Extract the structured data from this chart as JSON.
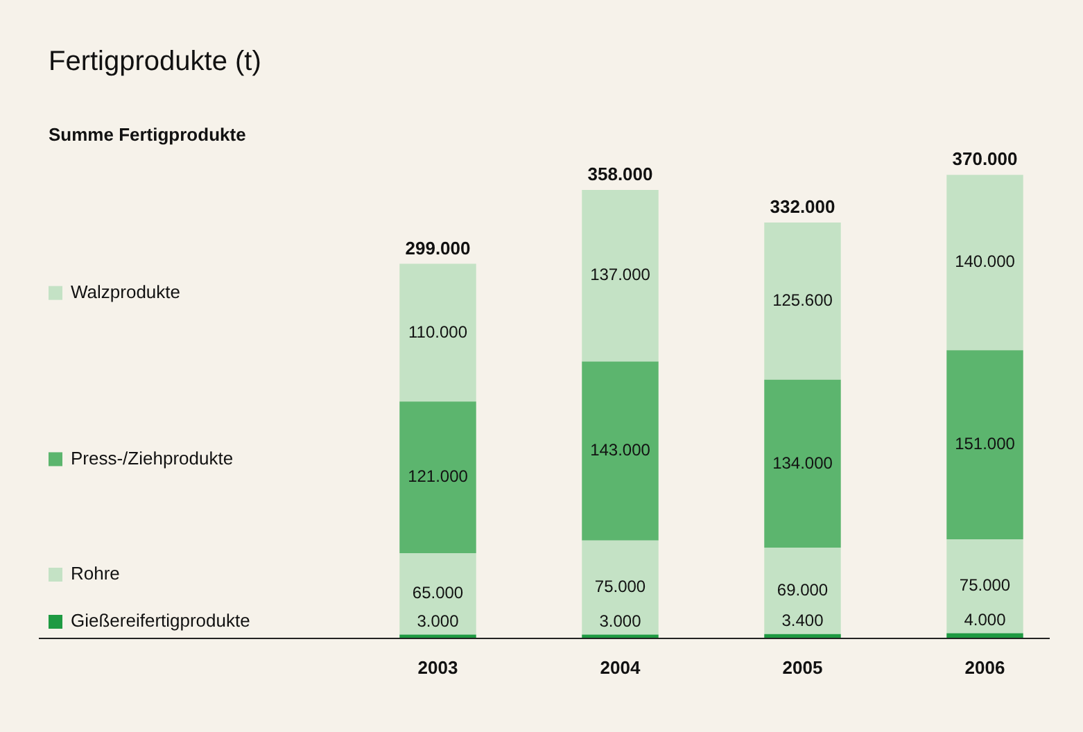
{
  "chart_data": {
    "type": "bar",
    "title": "Fertigprodukte (t)",
    "categories": [
      "2003",
      "2004",
      "2005",
      "2006"
    ],
    "stacked": true,
    "legend": "left",
    "grid": false,
    "tick_labels": "x",
    "series": [
      {
        "name": "Gießereifertigprodukte",
        "color": "#1e9a42",
        "values": [
          3000,
          3000,
          3400,
          4000
        ],
        "value_labels": [
          "3.000",
          "3.000",
          "3.400",
          "4.000"
        ]
      },
      {
        "name": "Rohre",
        "color": "#c4e2c5",
        "values": [
          65000,
          75000,
          69000,
          75000
        ],
        "value_labels": [
          "65.000",
          "75.000",
          "69.000",
          "75.000"
        ]
      },
      {
        "name": "Press-/Ziehprodukte",
        "color": "#5cb56e",
        "values": [
          121000,
          143000,
          134000,
          151000
        ],
        "value_labels": [
          "121.000",
          "143.000",
          "134.000",
          "151.000"
        ]
      },
      {
        "name": "Walzprodukte",
        "color": "#c4e2c5",
        "values": [
          110000,
          137000,
          125600,
          140000
        ],
        "value_labels": [
          "110.000",
          "137.000",
          "125.600",
          "140.000"
        ]
      }
    ],
    "annotations": [
      "Summe Fertigprodukte"
    ],
    "totals": [
      "299.000",
      "358.000",
      "332.000",
      "370.000"
    ]
  }
}
